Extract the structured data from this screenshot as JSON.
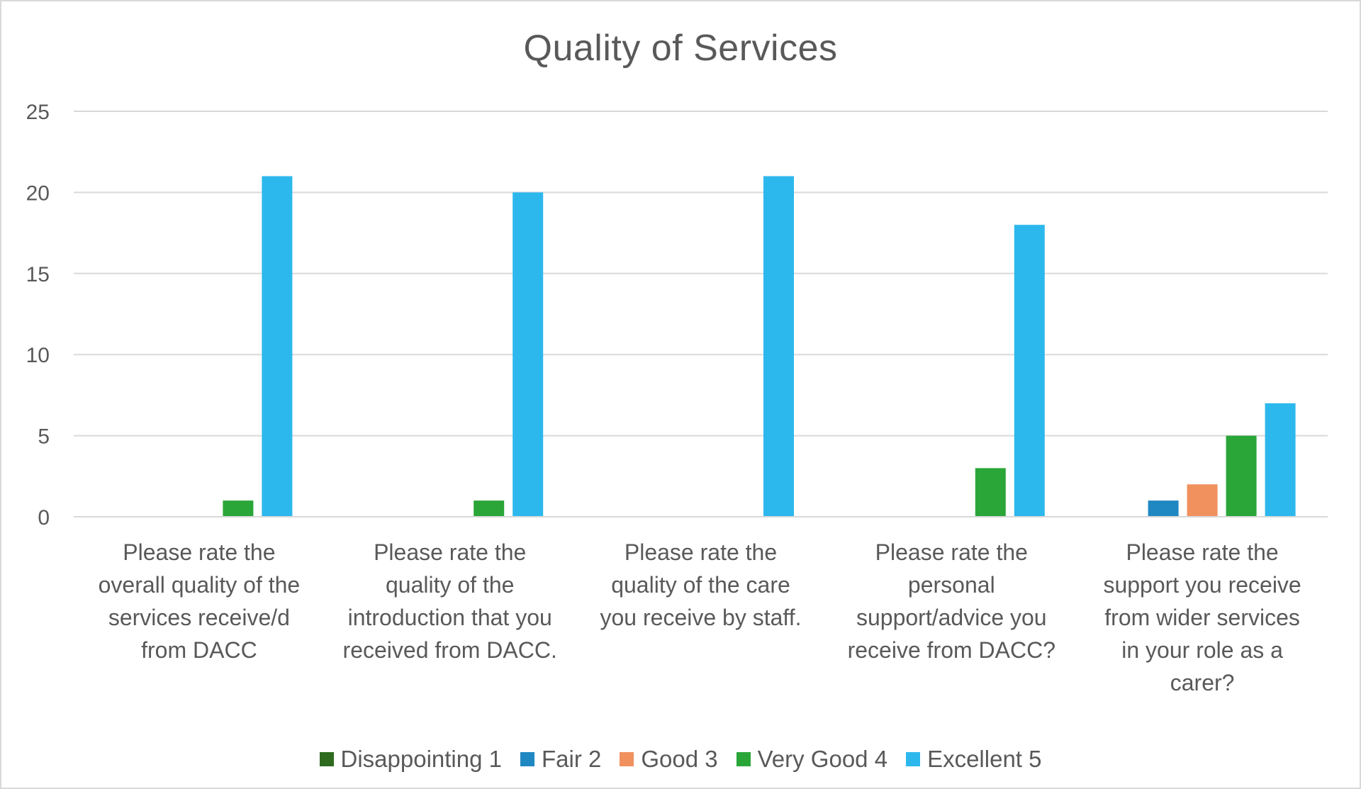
{
  "chart_data": {
    "type": "bar",
    "title": "Quality of Services",
    "xlabel": "",
    "ylabel": "",
    "ylim": [
      0,
      25
    ],
    "yticks": [
      0,
      5,
      10,
      15,
      20,
      25
    ],
    "grid": true,
    "legend_position": "bottom",
    "categories": [
      "Please rate the overall quality of the services receive/d from DACC",
      "Please rate the quality of the introduction that you received from DACC.",
      "Please rate the quality of the care you receive by staff.",
      "Please rate the personal support/advice you receive from DACC?",
      "Please rate the support you receive from wider services in your role as a carer?"
    ],
    "category_lines": [
      [
        "Please rate the",
        "overall quality of the",
        "services receive/d",
        "from DACC"
      ],
      [
        "Please rate the",
        "quality of the",
        "introduction that you",
        "received from DACC."
      ],
      [
        "Please rate the",
        "quality of the care",
        "you receive by staff."
      ],
      [
        "Please rate the",
        "personal",
        "support/advice you",
        "receive from DACC?"
      ],
      [
        "Please rate the",
        "support you receive",
        "from wider services",
        "in your role as a",
        "carer?"
      ]
    ],
    "series": [
      {
        "name": "Disappointing 1",
        "color": "#2e6b1f",
        "values": [
          0,
          0,
          0,
          0,
          0
        ]
      },
      {
        "name": "Fair 2",
        "color": "#1f87c1",
        "values": [
          0,
          0,
          0,
          0,
          1
        ]
      },
      {
        "name": "Good 3",
        "color": "#f0915e",
        "values": [
          0,
          0,
          0,
          0,
          2
        ]
      },
      {
        "name": "Very Good 4",
        "color": "#2aa638",
        "values": [
          1,
          1,
          0,
          3,
          5
        ]
      },
      {
        "name": "Excellent 5",
        "color": "#2db8ed",
        "values": [
          21,
          20,
          21,
          18,
          7
        ]
      }
    ]
  }
}
